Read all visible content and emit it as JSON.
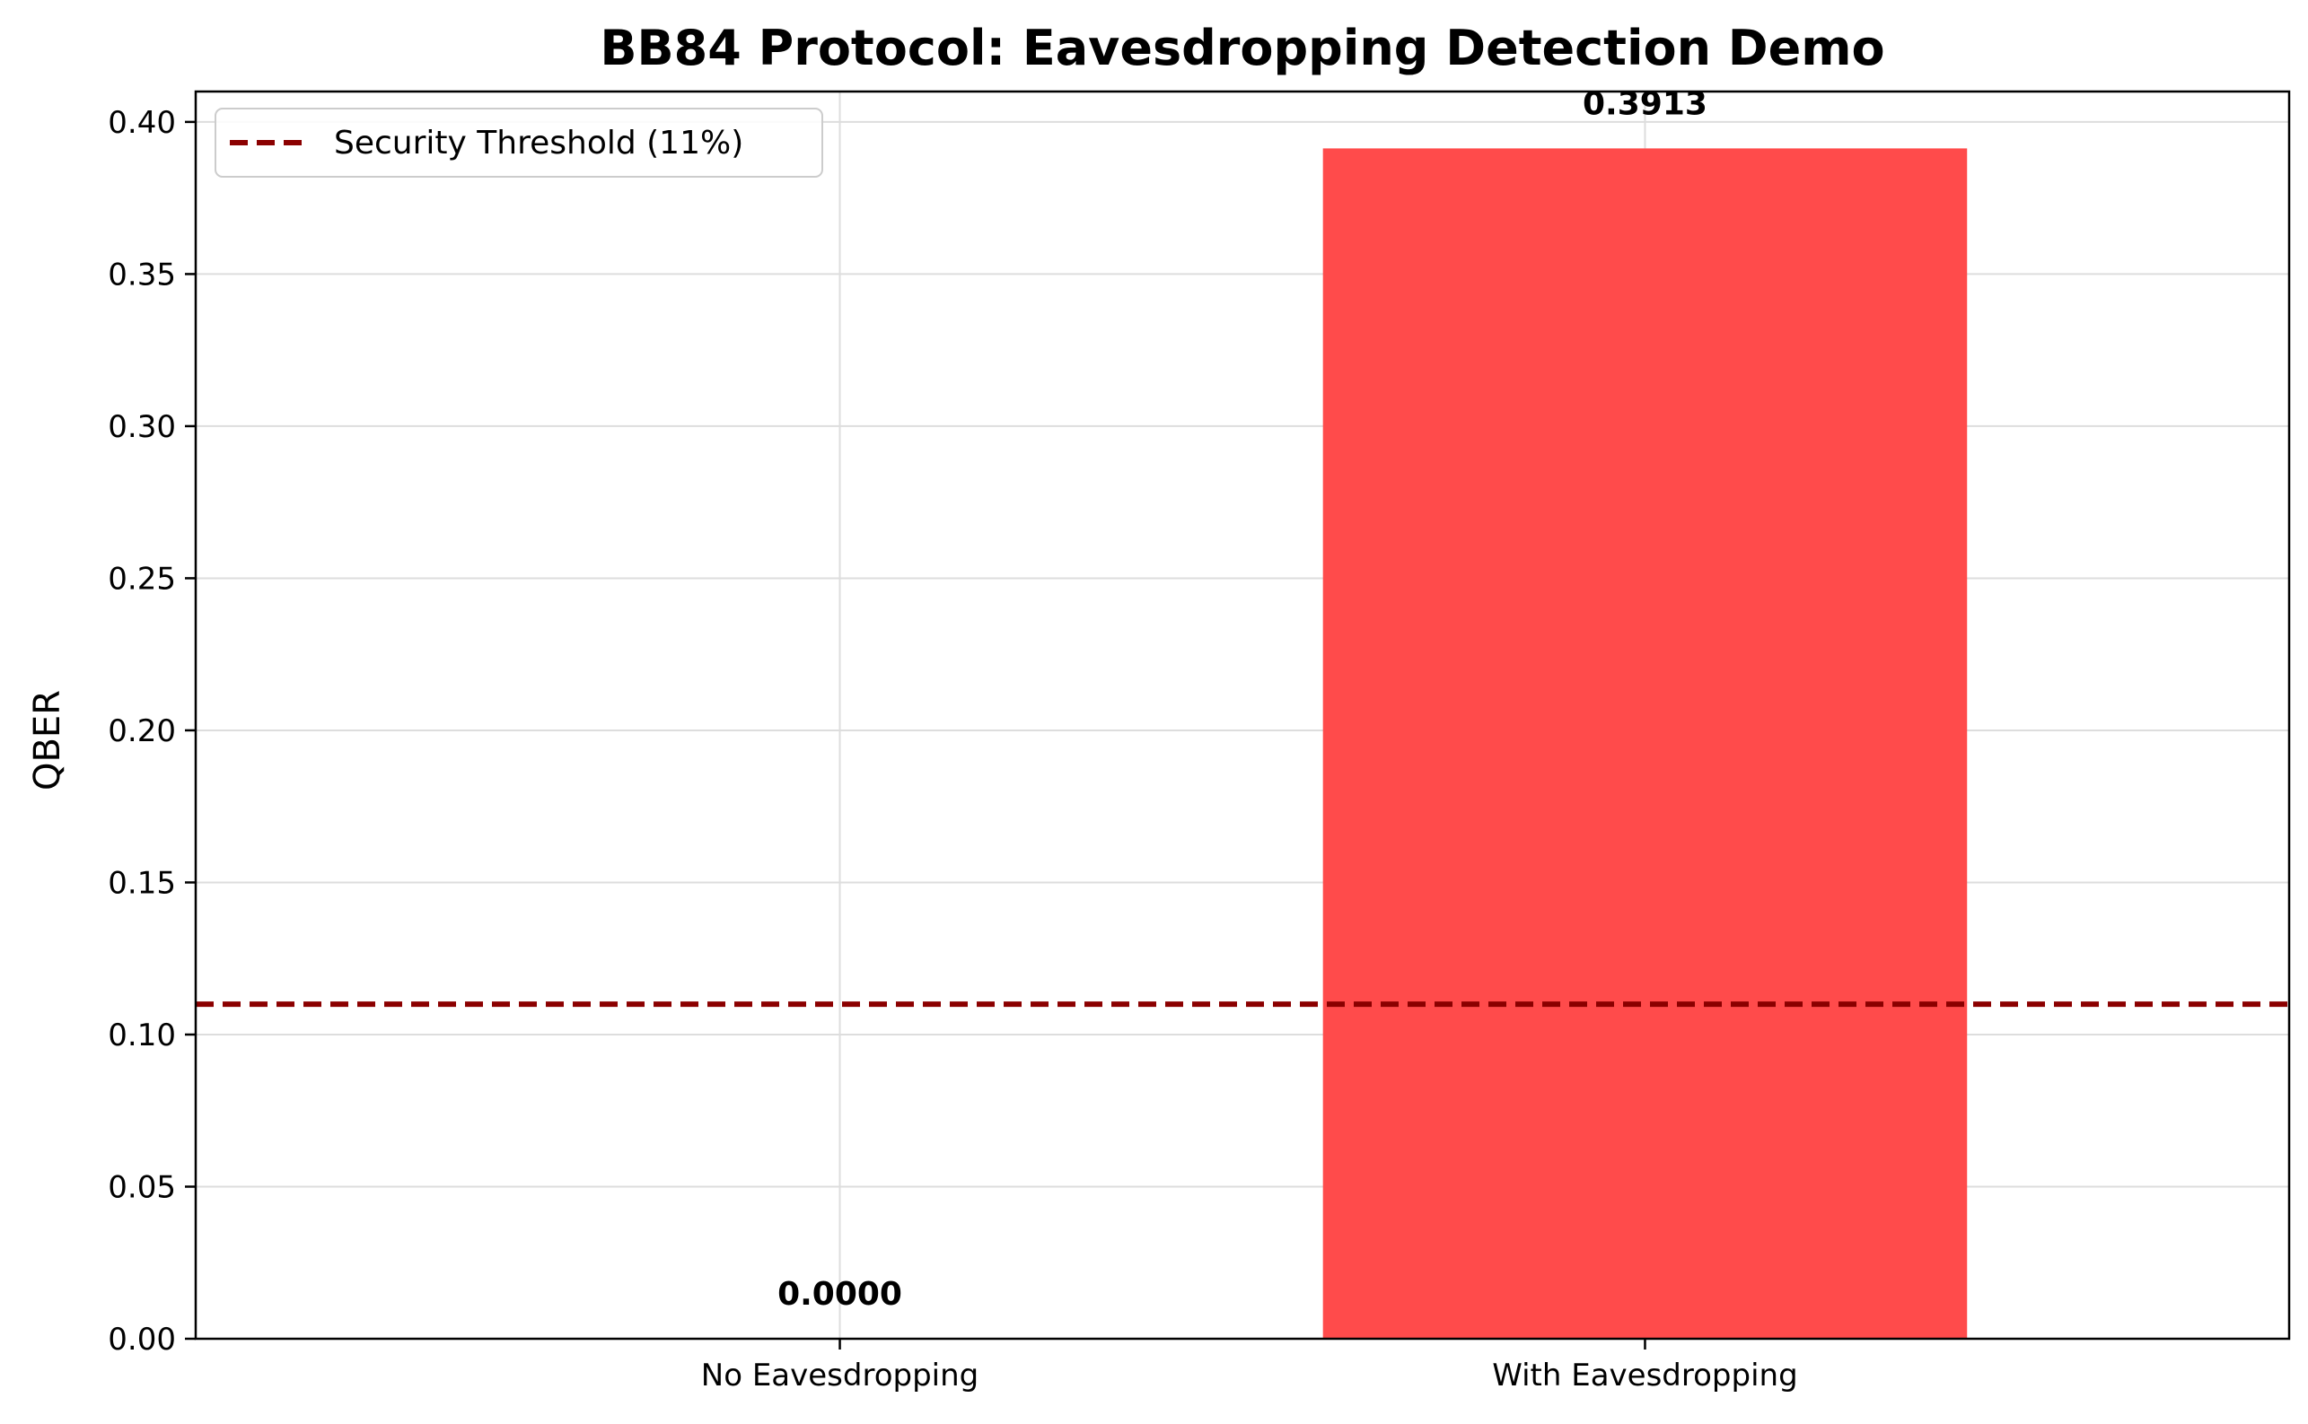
{
  "chart_data": {
    "type": "bar",
    "title": "BB84 Protocol: Eavesdropping Detection Demo",
    "xlabel": "",
    "ylabel": "QBER",
    "categories": [
      "No Eavesdropping",
      "With Eavesdropping"
    ],
    "values": [
      0.0,
      0.3913
    ],
    "value_labels": [
      "0.0000",
      "0.3913"
    ],
    "bar_colors": [
      "#4fa8f5",
      "#ff4b4b"
    ],
    "ylim": [
      0,
      0.41
    ],
    "yticks": [
      0.0,
      0.05,
      0.1,
      0.15,
      0.2,
      0.25,
      0.3,
      0.35,
      0.4
    ],
    "ytick_labels": [
      "0.00",
      "0.05",
      "0.10",
      "0.15",
      "0.20",
      "0.25",
      "0.30",
      "0.35",
      "0.40"
    ],
    "threshold": {
      "value": 0.11,
      "label": "Security Threshold (11%)",
      "color": "#8b0000",
      "style": "dashed"
    },
    "grid": true,
    "legend_position": "top-left"
  }
}
